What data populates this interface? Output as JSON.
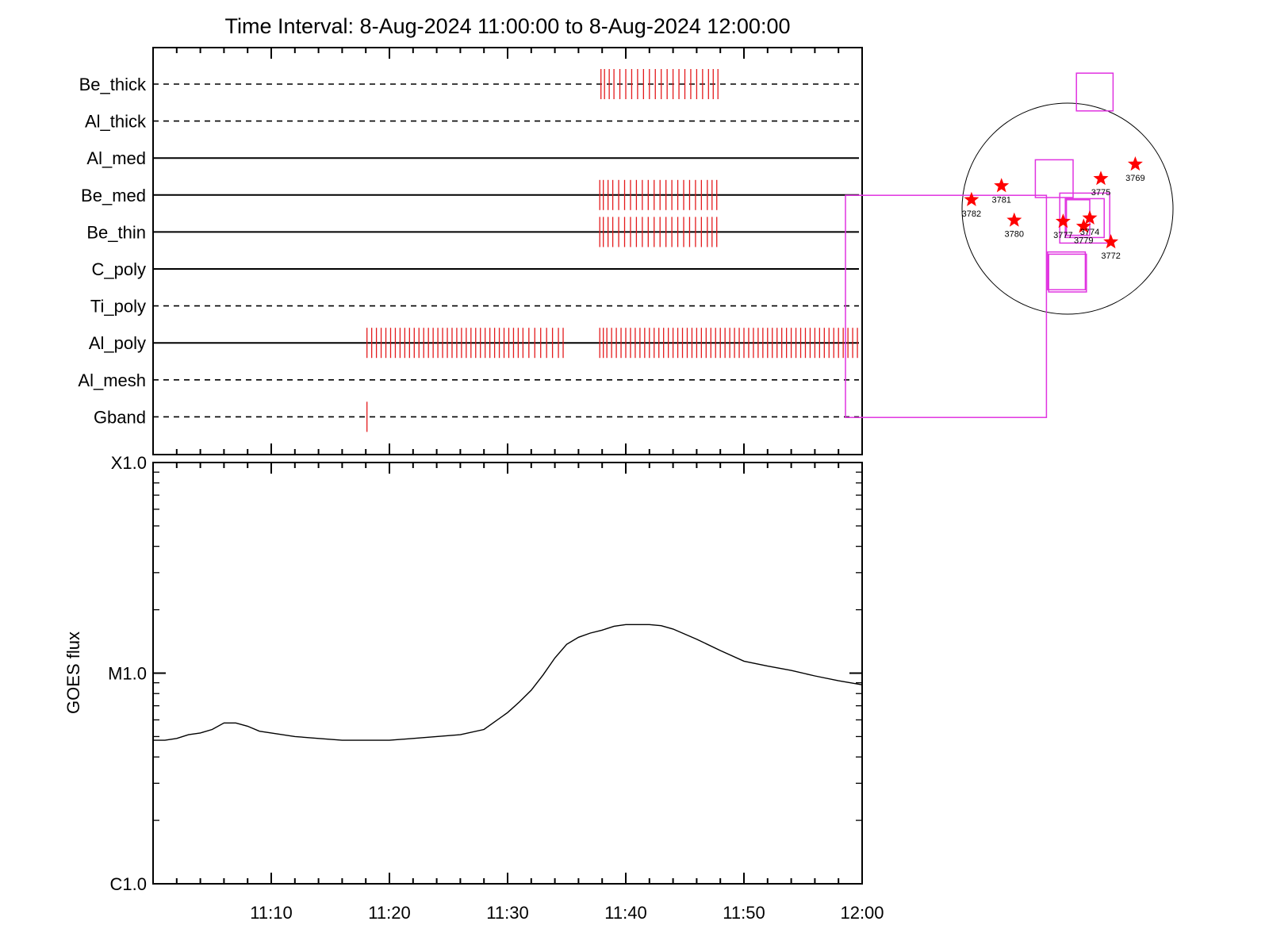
{
  "title": "Time Interval:  8-Aug-2024 11:00:00 to  8-Aug-2024 12:00:00",
  "chart_data": [
    {
      "type": "timeline",
      "x_unit": "minutes after 11:00",
      "xlim": [
        0,
        60
      ],
      "rows": [
        {
          "label": "Be_thick",
          "line": "dashed",
          "events": [
            37.9,
            38.2,
            38.6,
            39.0,
            39.5,
            40.0,
            40.5,
            41.0,
            41.5,
            42.0,
            42.5,
            43.0,
            43.5,
            44.0,
            44.5,
            45.0,
            45.5,
            46.0,
            46.5,
            47.0,
            47.4,
            47.8
          ]
        },
        {
          "label": "Al_thick",
          "line": "dashed",
          "events": []
        },
        {
          "label": "Al_med",
          "line": "solid",
          "events": []
        },
        {
          "label": "Be_med",
          "line": "solid",
          "events": [
            37.8,
            38.1,
            38.5,
            38.9,
            39.4,
            39.9,
            40.4,
            40.9,
            41.4,
            41.9,
            42.4,
            42.9,
            43.4,
            43.9,
            44.4,
            44.9,
            45.4,
            45.9,
            46.4,
            46.9,
            47.3,
            47.7
          ]
        },
        {
          "label": "Be_thin",
          "line": "solid",
          "events": [
            37.8,
            38.1,
            38.5,
            38.9,
            39.4,
            39.9,
            40.4,
            40.9,
            41.4,
            41.9,
            42.4,
            42.9,
            43.4,
            43.9,
            44.4,
            44.9,
            45.4,
            45.9,
            46.4,
            46.9,
            47.3,
            47.7
          ]
        },
        {
          "label": "C_poly",
          "line": "solid",
          "events": []
        },
        {
          "label": "Ti_poly",
          "line": "dashed",
          "events": []
        },
        {
          "label": "Al_poly",
          "line": "solid",
          "events": [
            18.1,
            18.5,
            18.9,
            19.3,
            19.7,
            20.1,
            20.5,
            20.9,
            21.3,
            21.7,
            22.1,
            22.5,
            22.9,
            23.3,
            23.7,
            24.1,
            24.5,
            24.9,
            25.3,
            25.7,
            26.1,
            26.5,
            26.9,
            27.3,
            27.7,
            28.1,
            28.5,
            28.9,
            29.3,
            29.7,
            30.1,
            30.5,
            30.9,
            31.3,
            31.8,
            32.3,
            32.8,
            33.3,
            33.8,
            34.3,
            34.7,
            37.8,
            38.1,
            38.4,
            38.8,
            39.2,
            39.6,
            40.0,
            40.4,
            40.8,
            41.2,
            41.6,
            42.0,
            42.4,
            42.8,
            43.2,
            43.6,
            44.0,
            44.4,
            44.8,
            45.2,
            45.6,
            46.0,
            46.4,
            46.8,
            47.2,
            47.6,
            48.0,
            48.4,
            48.8,
            49.2,
            49.6,
            50.0,
            50.4,
            50.8,
            51.2,
            51.6,
            52.0,
            52.4,
            52.8,
            53.2,
            53.6,
            54.0,
            54.4,
            54.8,
            55.2,
            55.6,
            56.0,
            56.4,
            56.8,
            57.2,
            57.6,
            58.0,
            58.4,
            58.8,
            59.2,
            59.6
          ]
        },
        {
          "label": "Al_mesh",
          "line": "dashed",
          "events": []
        },
        {
          "label": "Gband",
          "line": "dashed",
          "events": [
            18.1
          ]
        }
      ]
    },
    {
      "type": "line",
      "ylabel": "GOES flux",
      "y_scale": "log",
      "ylim": [
        1e-06,
        0.0001
      ],
      "y_tick_labels": [
        {
          "value": 1e-06,
          "label": "C1.0"
        },
        {
          "value": 1e-05,
          "label": "M1.0"
        },
        {
          "value": 0.0001,
          "label": "X1.0"
        }
      ],
      "xlim": [
        0,
        60
      ],
      "x_tick_labels": [
        {
          "value": 10,
          "label": "11:10"
        },
        {
          "value": 20,
          "label": "11:20"
        },
        {
          "value": 30,
          "label": "11:30"
        },
        {
          "value": 40,
          "label": "11:40"
        },
        {
          "value": 50,
          "label": "11:50"
        },
        {
          "value": 60,
          "label": "12:00"
        }
      ],
      "series": [
        {
          "x": [
            0,
            1,
            2,
            3,
            4,
            5,
            6,
            7,
            8,
            9,
            10,
            12,
            14,
            16,
            18,
            20,
            22,
            24,
            26,
            28,
            30,
            31,
            32,
            33,
            34,
            35,
            36,
            37,
            38,
            39,
            40,
            41,
            42,
            43,
            44,
            46,
            48,
            50,
            52,
            54,
            56,
            58,
            60
          ],
          "y": [
            4.8e-06,
            4.8e-06,
            4.9e-06,
            5.1e-06,
            5.2e-06,
            5.4e-06,
            5.8e-06,
            5.8e-06,
            5.6e-06,
            5.3e-06,
            5.2e-06,
            5e-06,
            4.9e-06,
            4.8e-06,
            4.8e-06,
            4.8e-06,
            4.9e-06,
            5e-06,
            5.1e-06,
            5.4e-06,
            6.5e-06,
            7.3e-06,
            8.3e-06,
            9.8e-06,
            1.18e-05,
            1.37e-05,
            1.48e-05,
            1.55e-05,
            1.6e-05,
            1.67e-05,
            1.7e-05,
            1.7e-05,
            1.7e-05,
            1.68e-05,
            1.62e-05,
            1.45e-05,
            1.28e-05,
            1.14e-05,
            1.08e-05,
            1.03e-05,
            9.7e-06,
            9.2e-06,
            8.8e-06
          ]
        }
      ]
    },
    {
      "type": "scatter",
      "points": [
        {
          "label": "3782",
          "x": -865,
          "y": 80
        },
        {
          "label": "3781",
          "x": -595,
          "y": 205
        },
        {
          "label": "3780",
          "x": -480,
          "y": -105
        },
        {
          "label": "3777",
          "x": -40,
          "y": -115
        },
        {
          "label": "3779",
          "x": 145,
          "y": -160
        },
        {
          "label": "3774",
          "x": 200,
          "y": -85
        },
        {
          "label": "3775",
          "x": 300,
          "y": 270
        },
        {
          "label": "3769",
          "x": 610,
          "y": 400
        },
        {
          "label": "3772",
          "x": 390,
          "y": -300
        }
      ],
      "regions_arcsec": [
        {
          "x0": -2000,
          "x1": -190,
          "y0": -1880,
          "y1": 120
        },
        {
          "x0": 80,
          "x1": 410,
          "y0": 880,
          "y1": 1220
        },
        {
          "x0": -290,
          "x1": 50,
          "y0": 100,
          "y1": 440
        },
        {
          "x0": -70,
          "x1": 380,
          "y0": -310,
          "y1": 140
        },
        {
          "x0": -20,
          "x1": 330,
          "y0": -260,
          "y1": 90
        },
        {
          "x0": -10,
          "x1": 200,
          "y0": -240,
          "y1": 80
        },
        {
          "x0": -180,
          "x1": 160,
          "y0": -730,
          "y1": -390
        },
        {
          "x0": -170,
          "x1": 170,
          "y0": -750,
          "y1": -410
        }
      ],
      "colors": {
        "events": "#e41a1c",
        "regions": "#e033e0",
        "stars": "#ff0000"
      }
    }
  ]
}
